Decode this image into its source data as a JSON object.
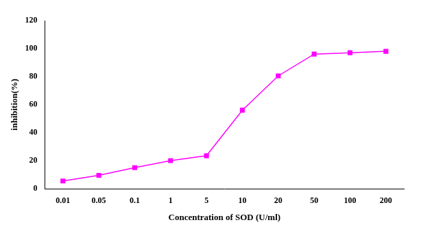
{
  "chart_data": {
    "type": "line",
    "x_label": "Concentration of SOD (U/ml)",
    "y_label": "inhibition(%)",
    "categories": [
      "0.01",
      "0.05",
      "0.1",
      "1",
      "5",
      "10",
      "20",
      "50",
      "100",
      "200"
    ],
    "values": [
      5.5,
      9.5,
      15,
      20,
      23.5,
      56,
      80.5,
      96,
      97,
      98
    ],
    "color": "#ff00ff",
    "marker": "square",
    "line_style": "solid",
    "ylim": [
      0,
      120
    ],
    "yticks": [
      0,
      20,
      40,
      60,
      80,
      100,
      120
    ],
    "grid": false
  }
}
